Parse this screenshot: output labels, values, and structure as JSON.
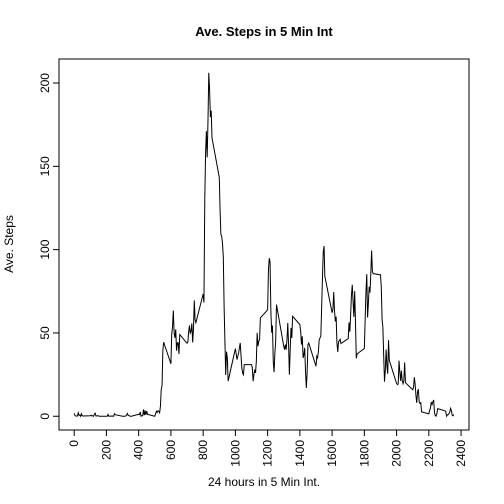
{
  "chart_data": {
    "type": "line",
    "title": "Ave. Steps in 5 Min Int",
    "x_label": "24 hours in 5 Min Int.",
    "y_label": "Ave. Steps",
    "color": "#000000",
    "x": [
      0,
      5,
      10,
      15,
      20,
      25,
      30,
      35,
      40,
      45,
      50,
      55,
      100,
      105,
      110,
      115,
      120,
      125,
      130,
      135,
      140,
      145,
      150,
      155,
      200,
      205,
      210,
      215,
      220,
      225,
      230,
      235,
      240,
      245,
      250,
      255,
      300,
      305,
      310,
      315,
      320,
      325,
      330,
      335,
      340,
      345,
      350,
      355,
      400,
      405,
      410,
      415,
      420,
      425,
      430,
      435,
      440,
      445,
      450,
      455,
      500,
      505,
      510,
      515,
      520,
      525,
      530,
      535,
      540,
      545,
      550,
      555,
      600,
      605,
      610,
      615,
      620,
      625,
      630,
      635,
      640,
      645,
      650,
      655,
      700,
      705,
      710,
      715,
      720,
      725,
      730,
      735,
      740,
      745,
      750,
      755,
      800,
      805,
      810,
      815,
      820,
      825,
      830,
      835,
      840,
      845,
      850,
      855,
      900,
      905,
      910,
      915,
      920,
      925,
      930,
      935,
      940,
      945,
      950,
      955,
      1000,
      1010,
      1020,
      1030,
      1040,
      1045,
      1050,
      1055,
      1100,
      1105,
      1110,
      1115,
      1120,
      1125,
      1130,
      1135,
      1140,
      1145,
      1150,
      1155,
      1200,
      1205,
      1210,
      1215,
      1220,
      1225,
      1230,
      1235,
      1240,
      1245,
      1250,
      1255,
      1300,
      1305,
      1310,
      1315,
      1320,
      1325,
      1330,
      1335,
      1340,
      1345,
      1350,
      1355,
      1400,
      1405,
      1410,
      1415,
      1420,
      1425,
      1430,
      1435,
      1440,
      1445,
      1450,
      1455,
      1500,
      1505,
      1510,
      1515,
      1520,
      1525,
      1530,
      1535,
      1540,
      1545,
      1550,
      1555,
      1600,
      1605,
      1610,
      1615,
      1620,
      1625,
      1630,
      1635,
      1640,
      1645,
      1650,
      1655,
      1700,
      1705,
      1710,
      1715,
      1720,
      1725,
      1730,
      1735,
      1740,
      1745,
      1750,
      1755,
      1800,
      1805,
      1810,
      1815,
      1820,
      1825,
      1830,
      1835,
      1840,
      1845,
      1850,
      1855,
      1900,
      1905,
      1910,
      1915,
      1920,
      1925,
      1930,
      1935,
      1940,
      1945,
      1950,
      1955,
      2000,
      2005,
      2010,
      2015,
      2020,
      2025,
      2030,
      2035,
      2040,
      2045,
      2050,
      2055,
      2100,
      2105,
      2110,
      2115,
      2120,
      2125,
      2130,
      2135,
      2140,
      2145,
      2150,
      2155,
      2200,
      2205,
      2210,
      2215,
      2220,
      2225,
      2230,
      2235,
      2240,
      2245,
      2250,
      2255,
      2300,
      2305,
      2310,
      2315,
      2320,
      2325,
      2330,
      2335,
      2340,
      2345,
      2350,
      2355
    ],
    "values": [
      1.72,
      0.34,
      0.13,
      0.15,
      0.08,
      2.09,
      0.53,
      0.87,
      0,
      1.47,
      0.3,
      0.13,
      0.32,
      0.68,
      0.15,
      0.34,
      0,
      1.11,
      1.83,
      0.17,
      0.17,
      0.38,
      0.26,
      0,
      0,
      0,
      1.13,
      0,
      0,
      0.13,
      0,
      0.23,
      0,
      0,
      1.55,
      0.94,
      0,
      0,
      0,
      0,
      0.21,
      0.62,
      1.62,
      0.58,
      0.49,
      0.08,
      0,
      0,
      1.19,
      0.94,
      2.57,
      0,
      0.34,
      0.36,
      4.11,
      0.66,
      3.49,
      0.83,
      3.11,
      1.11,
      0,
      1.57,
      3,
      2.25,
      3.32,
      2.96,
      2.09,
      6.06,
      16.02,
      18.34,
      39.45,
      44.49,
      31.49,
      49.26,
      53.77,
      63.45,
      49.96,
      47.08,
      52.15,
      39.34,
      44.02,
      44.17,
      37.36,
      49.04,
      43.81,
      44.38,
      50.51,
      54.51,
      49.92,
      50.98,
      55.68,
      44.32,
      52.26,
      69.55,
      57.85,
      56.15,
      73.38,
      68.21,
      129.43,
      157.53,
      171.15,
      155.4,
      177.3,
      206.17,
      195.92,
      179.57,
      183.4,
      167.02,
      143.45,
      124.04,
      109.11,
      108.11,
      103.72,
      95.96,
      66.21,
      45.23,
      24.79,
      38.75,
      34.98,
      21.06,
      40.57,
      34,
      38,
      44,
      29,
      26,
      25,
      31,
      31,
      29,
      21,
      25,
      28,
      26,
      33,
      50,
      42,
      45,
      46,
      59,
      63.87,
      87.6,
      94.85,
      92.77,
      63.4,
      50.17,
      54.47,
      32.42,
      26.53,
      38,
      45,
      67,
      42,
      40,
      43,
      40,
      46,
      56,
      43,
      25,
      40,
      53,
      47,
      60,
      55,
      51,
      43,
      48,
      35,
      37,
      41,
      27,
      17,
      26,
      43,
      44,
      30,
      36,
      35,
      39,
      46,
      47,
      48,
      65,
      82.9,
      98.66,
      102.11,
      83.96,
      62.13,
      64.13,
      74.55,
      63.17,
      56.91,
      59.77,
      43.87,
      38.57,
      44.66,
      45.45,
      46.2,
      43.68,
      46.62,
      56.3,
      50.72,
      61.23,
      72.72,
      78.94,
      68.94,
      59.66,
      75.09,
      56.51,
      34.77,
      37.45,
      40.68,
      58.02,
      74.7,
      85.32,
      59.26,
      67.77,
      77.7,
      74.25,
      85.34,
      99.45,
      86.58,
      85.6,
      84.87,
      77.83,
      58.04,
      53.36,
      36.33,
      20.72,
      27.4,
      40.02,
      30.21,
      25.55,
      45.66,
      33.53,
      19.62,
      19.02,
      19.34,
      33.34,
      26.81,
      21.17,
      27.3,
      21.34,
      19.55,
      21.32,
      32.3,
      20.15,
      15.94,
      17.23,
      23.45,
      19.25,
      12.45,
      8.02,
      14.66,
      16.3,
      8.68,
      7.79,
      8.13,
      2.62,
      1.45,
      3.68,
      4.81,
      8.51,
      7.08,
      8.7,
      9.75,
      2.21,
      0.32,
      0.11,
      1.6,
      4.6,
      3.3,
      2.85,
      0,
      0.83,
      0.96,
      1.58,
      2.6,
      4.7,
      3.3,
      0.64,
      0.23,
      1.08
    ],
    "xlim": [
      -94.2,
      2449.2
    ],
    "xticks": [
      0,
      200,
      400,
      600,
      800,
      1000,
      1200,
      1400,
      1600,
      1800,
      2000,
      2200,
      2400
    ],
    "ylim": [
      -8.25,
      214.42
    ],
    "yticks": [
      0,
      50,
      100,
      150,
      200
    ]
  }
}
